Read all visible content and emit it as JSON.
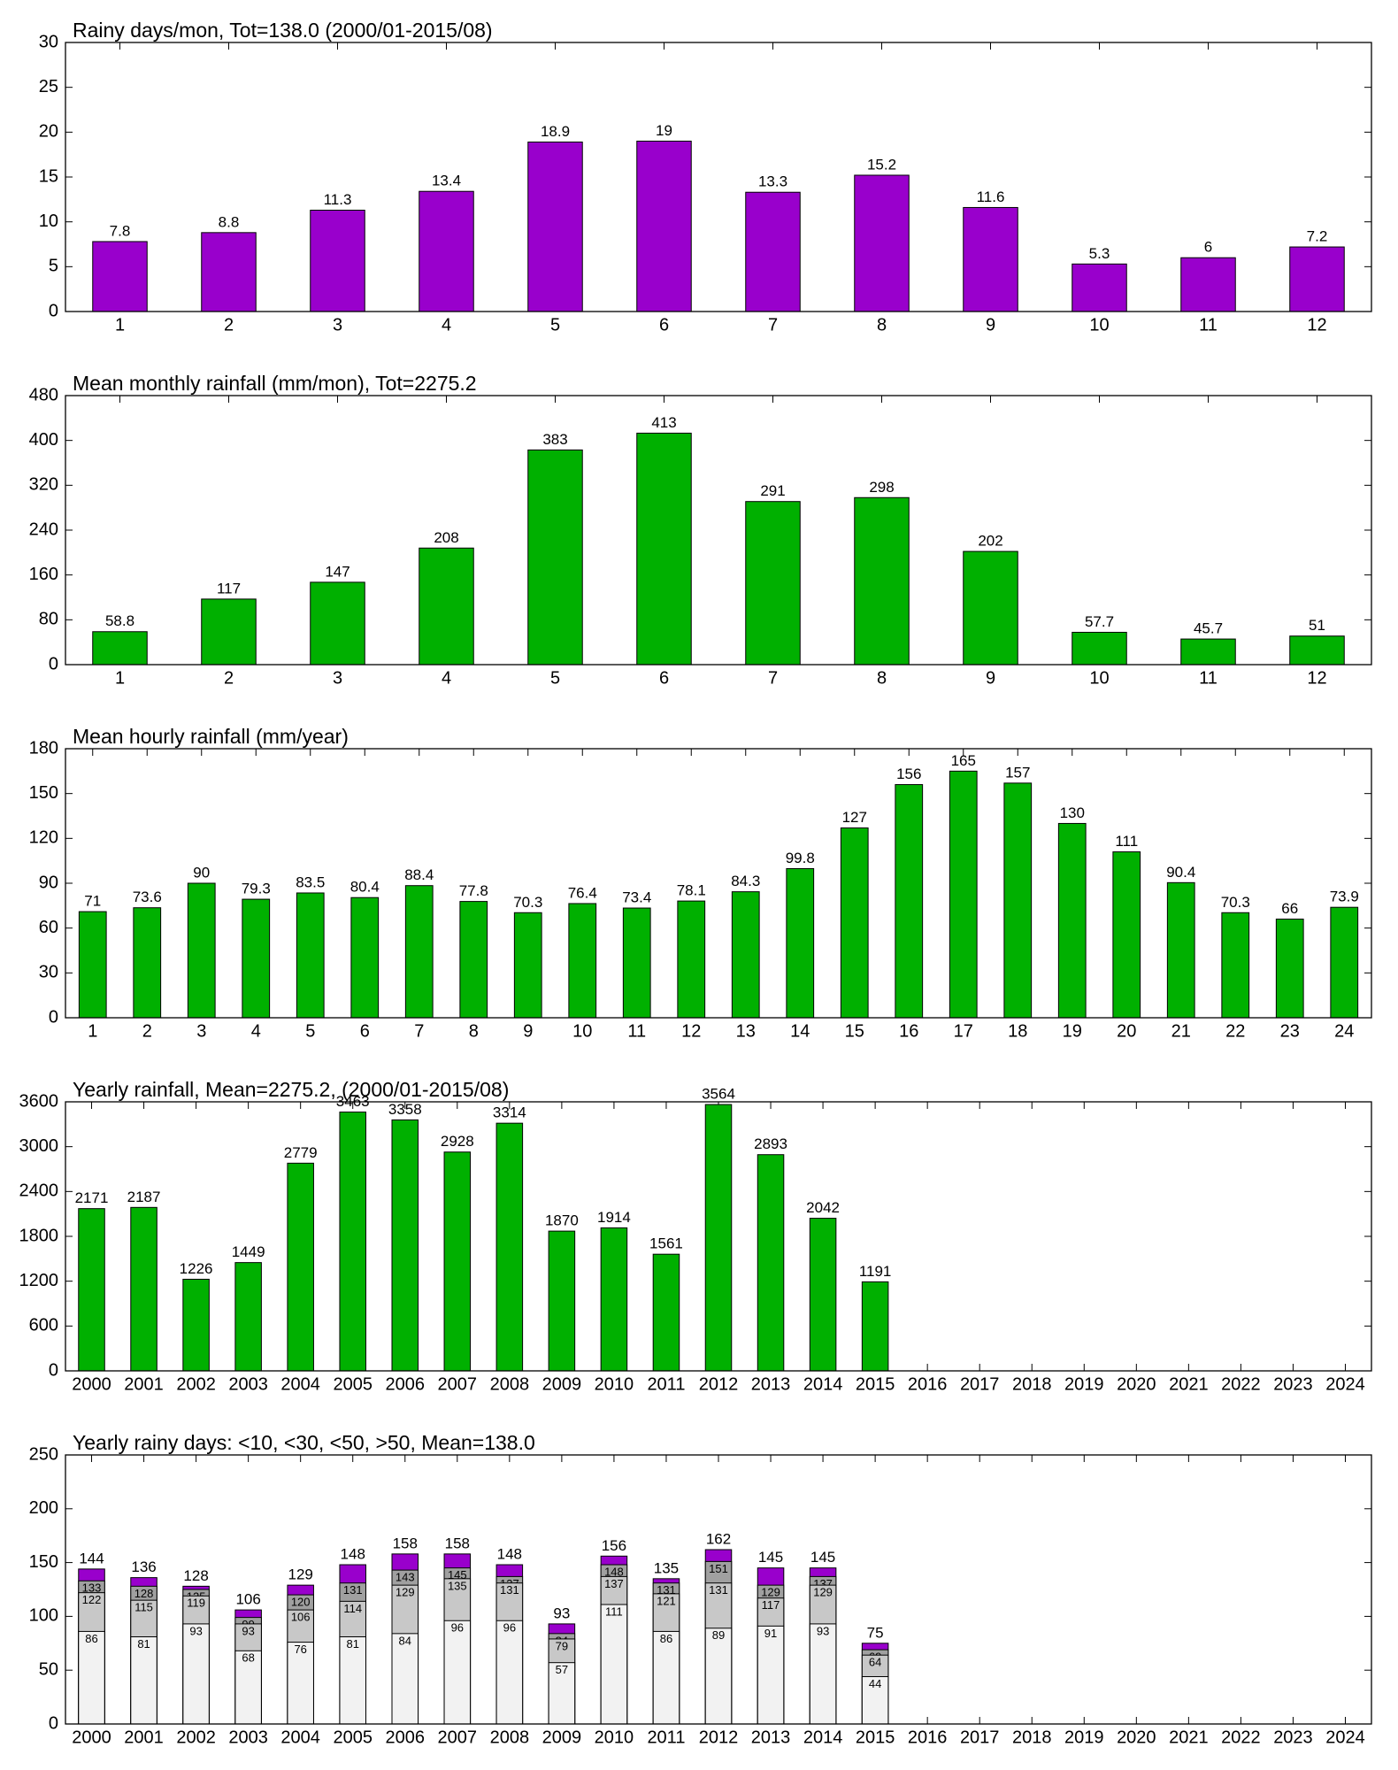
{
  "chart_data": [
    {
      "type": "bar",
      "title": "Rainy days/mon, Tot=138.0 (2000/01-2015/08)",
      "categories": [
        "1",
        "2",
        "3",
        "4",
        "5",
        "6",
        "7",
        "8",
        "9",
        "10",
        "11",
        "12"
      ],
      "values": [
        7.8,
        8.8,
        11.3,
        13.4,
        18.9,
        19,
        13.3,
        15.2,
        11.6,
        5.3,
        6,
        7.2
      ],
      "color": "#9900cc",
      "ylim": [
        0,
        30
      ],
      "yticks": [
        0,
        5,
        10,
        15,
        20,
        25,
        30
      ]
    },
    {
      "type": "bar",
      "title": "Mean monthly rainfall (mm/mon), Tot=2275.2",
      "categories": [
        "1",
        "2",
        "3",
        "4",
        "5",
        "6",
        "7",
        "8",
        "9",
        "10",
        "11",
        "12"
      ],
      "values": [
        58.8,
        117,
        147,
        208,
        383,
        413,
        291,
        298,
        202,
        57.7,
        45.7,
        51
      ],
      "color": "#00b000",
      "ylim": [
        0,
        480
      ],
      "yticks": [
        0,
        80,
        160,
        240,
        320,
        400,
        480
      ]
    },
    {
      "type": "bar",
      "title": "Mean hourly rainfall (mm/year)",
      "categories": [
        "1",
        "2",
        "3",
        "4",
        "5",
        "6",
        "7",
        "8",
        "9",
        "10",
        "11",
        "12",
        "13",
        "14",
        "15",
        "16",
        "17",
        "18",
        "19",
        "20",
        "21",
        "22",
        "23",
        "24"
      ],
      "values": [
        71,
        73.6,
        90,
        79.3,
        83.5,
        80.4,
        88.4,
        77.8,
        70.3,
        76.4,
        73.4,
        78.1,
        84.3,
        99.8,
        127,
        156,
        165,
        157,
        130,
        111,
        90.4,
        70.3,
        66,
        73.9
      ],
      "color": "#00b000",
      "ylim": [
        0,
        180
      ],
      "yticks": [
        0,
        30,
        60,
        90,
        120,
        150,
        180
      ]
    },
    {
      "type": "bar",
      "title": "Yearly rainfall, Mean=2275.2, (2000/01-2015/08)",
      "categories": [
        "2000",
        "2001",
        "2002",
        "2003",
        "2004",
        "2005",
        "2006",
        "2007",
        "2008",
        "2009",
        "2010",
        "2011",
        "2012",
        "2013",
        "2014",
        "2015",
        "2016",
        "2017",
        "2018",
        "2019",
        "2020",
        "2021",
        "2022",
        "2023",
        "2024"
      ],
      "values": [
        2171,
        2187,
        1226,
        1449,
        2779,
        3463,
        3358,
        2928,
        3314,
        1870,
        1914,
        1561,
        3564,
        2893,
        2042,
        1191,
        null,
        null,
        null,
        null,
        null,
        null,
        null,
        null,
        null
      ],
      "color": "#00b000",
      "ylim": [
        0,
        3600
      ],
      "yticks": [
        0,
        600,
        1200,
        1800,
        2400,
        3000,
        3600
      ]
    },
    {
      "type": "overlap",
      "title": "Yearly rainy days: <10, <30, <50, >50, Mean=138.0",
      "categories": [
        "2000",
        "2001",
        "2002",
        "2003",
        "2004",
        "2005",
        "2006",
        "2007",
        "2008",
        "2009",
        "2010",
        "2011",
        "2012",
        "2013",
        "2014",
        "2015",
        "2016",
        "2017",
        "2018",
        "2019",
        "2020",
        "2021",
        "2022",
        "2023",
        "2024"
      ],
      "series": [
        {
          "color": "#9900cc",
          "values": [
            144,
            136,
            128,
            106,
            129,
            148,
            158,
            158,
            148,
            93,
            156,
            135,
            162,
            145,
            145,
            75,
            null,
            null,
            null,
            null,
            null,
            null,
            null,
            null,
            null
          ]
        },
        {
          "color": "#a0a0a0",
          "values": [
            133,
            128,
            125,
            99,
            120,
            131,
            143,
            145,
            137,
            84,
            148,
            131,
            151,
            129,
            137,
            69,
            null,
            null,
            null,
            null,
            null,
            null,
            null,
            null,
            null
          ]
        },
        {
          "color": "#c8c8c8",
          "values": [
            122,
            115,
            119,
            93,
            106,
            114,
            129,
            135,
            131,
            79,
            137,
            121,
            131,
            117,
            129,
            64,
            null,
            null,
            null,
            null,
            null,
            null,
            null,
            null,
            null
          ]
        },
        {
          "color": "#f2f2f2",
          "values": [
            86,
            81,
            93,
            68,
            76,
            81,
            84,
            96,
            96,
            57,
            111,
            86,
            89,
            91,
            93,
            44,
            null,
            null,
            null,
            null,
            null,
            null,
            null,
            null,
            null
          ]
        }
      ],
      "ylim": [
        0,
        250
      ],
      "yticks": [
        0,
        50,
        100,
        150,
        200,
        250
      ]
    }
  ]
}
